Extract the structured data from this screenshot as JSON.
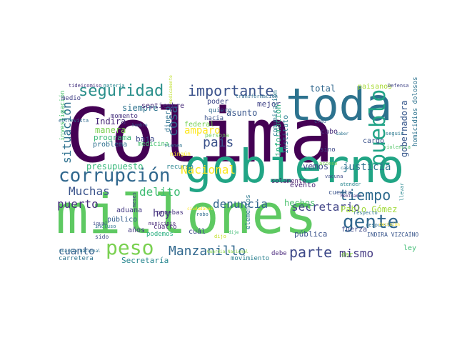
{
  "words": [
    {
      "text": "Colima",
      "color": "#440154"
    },
    {
      "text": "millones",
      "color": "#5ec962"
    },
    {
      "text": "gobierno",
      "color": "#21a585"
    },
    {
      "text": "toda",
      "color": "#2c728e"
    },
    {
      "text": "corrupción",
      "color": "#31688e"
    },
    {
      "text": "seguridad",
      "color": "#2a8f8b"
    },
    {
      "text": "importante",
      "color": "#3b528b"
    },
    {
      "text": "pueblo",
      "color": "#20a386"
    },
    {
      "text": "gente",
      "color": "#31688e"
    },
    {
      "text": "tiempo",
      "color": "#2f6b8e"
    },
    {
      "text": "Manzanillo",
      "color": "#31688e"
    },
    {
      "text": "peso",
      "color": "#7ad151"
    },
    {
      "text": "parte",
      "color": "#3e4989"
    },
    {
      "text": "mismo",
      "color": "#443a83"
    },
    {
      "text": "denuncia",
      "color": "#32648e"
    },
    {
      "text": "secretario",
      "color": "#414487"
    },
    {
      "text": "Muchas",
      "color": "#3a538b"
    },
    {
      "text": "delito",
      "color": "#3fbc73"
    },
    {
      "text": "puerto",
      "color": "#46327e"
    },
    {
      "text": "situación",
      "color": "#2d708e"
    },
    {
      "text": "cosa",
      "color": "#32648e"
    },
    {
      "text": "país",
      "color": "#3b528b"
    },
    {
      "text": "Nacional",
      "color": "#fde725"
    },
    {
      "text": "hoy",
      "color": "#46337f"
    },
    {
      "text": "cuanto",
      "color": "#355f8d"
    },
    {
      "text": "justicia",
      "color": "#2c738e"
    },
    {
      "text": "vemos",
      "color": "#3e4a89"
    },
    {
      "text": "gobernadora",
      "color": "#38588c"
    },
    {
      "text": "presupuesto",
      "color": "#35b779"
    },
    {
      "text": "siempre",
      "color": "#2c728e"
    },
    {
      "text": "manera",
      "color": "#7ad151"
    },
    {
      "text": "Indira",
      "color": "#482878"
    },
    {
      "text": "amparo",
      "color": "#fde725"
    },
    {
      "text": "total",
      "color": "#31688e"
    },
    {
      "text": "asunto",
      "color": "#39568c"
    },
    {
      "text": "mejor",
      "color": "#414487"
    },
    {
      "text": "hechos",
      "color": "#4ac16d"
    },
    {
      "text": "información",
      "color": "#29af7f"
    },
    {
      "text": "comunicación",
      "color": "#2a788e"
    },
    {
      "text": "septiembre",
      "color": "#472c7a"
    },
    {
      "text": "programa",
      "color": "#3aba76"
    },
    {
      "text": "dinero",
      "color": "#2d708e"
    },
    {
      "text": "baja",
      "color": "#3e4989"
    },
    {
      "text": "federal",
      "color": "#75d054"
    },
    {
      "text": "aduana",
      "color": "#443983"
    },
    {
      "text": "Pablo Gómez",
      "color": "#a0da39"
    },
    {
      "text": "Secretaría",
      "color": "#25858e"
    },
    {
      "text": "carretera",
      "color": "#2c728e"
    },
    {
      "text": "movimiento",
      "color": "#277f8e"
    },
    {
      "text": "pública",
      "color": "#3b528b"
    },
    {
      "text": "público",
      "color": "#355f8d"
    },
    {
      "text": "años",
      "color": "#443a83"
    },
    {
      "text": "podemos",
      "color": "#29af7f"
    },
    {
      "text": "cuatro",
      "color": "#482677"
    },
    {
      "text": "pruebas",
      "color": "#46337f"
    },
    {
      "text": "cuál",
      "color": "#3e4989"
    },
    {
      "text": "debe",
      "color": "#4c2a7d"
    },
    {
      "text": "ley",
      "color": "#3fbc73"
    },
    {
      "text": "dar",
      "color": "#8bd646"
    },
    {
      "text": "fuerza",
      "color": "#3e4989"
    },
    {
      "text": "elementos",
      "color": "#2a788e"
    },
    {
      "text": "evento",
      "color": "#482575"
    },
    {
      "text": "solamente",
      "color": "#481467"
    },
    {
      "text": "Instituto",
      "color": "#287d8e"
    },
    {
      "text": "cabo",
      "color": "#472d7b"
    },
    {
      "text": "cargo",
      "color": "#3b528b"
    },
    {
      "text": "homicidios dolosos",
      "color": "#2c728e"
    },
    {
      "text": "paisanos",
      "color": "#a8db34"
    },
    {
      "text": "poder",
      "color": "#3e4989"
    },
    {
      "text": "quiero",
      "color": "#31688e"
    },
    {
      "text": "hacia",
      "color": "#3b528b"
    },
    {
      "text": "momento",
      "color": "#46327e"
    },
    {
      "text": "investigación",
      "color": "#4ac16d"
    },
    {
      "text": "medio",
      "color": "#424086"
    },
    {
      "text": "problema",
      "color": "#2d708e"
    },
    {
      "text": "medicina",
      "color": "#46c06f"
    },
    {
      "text": "ningún",
      "color": "#fde725"
    },
    {
      "text": "recurso",
      "color": "#26828e"
    },
    {
      "text": "persona",
      "color": "#6ccd5a"
    },
    {
      "text": "transformación",
      "color": "#2f6b8e"
    },
    {
      "text": "sino",
      "color": "#3e4989"
    },
    {
      "text": "creo",
      "color": "#35608d"
    },
    {
      "text": "Defensa",
      "color": "#414487"
    },
    {
      "text": "cuenta",
      "color": "#3a538b"
    },
    {
      "text": "seguir",
      "color": "#2a788e"
    },
    {
      "text": "violencia",
      "color": "#54c568"
    },
    {
      "text": "atender",
      "color": "#25858e"
    },
    {
      "text": "respuesta",
      "color": "#2d708e"
    },
    {
      "text": "INDIRA VIZCAÍNO",
      "color": "#39568c"
    },
    {
      "text": "tideicomiso",
      "color": "#46337f"
    },
    {
      "text": "materia",
      "color": "#25858e"
    },
    {
      "text": "entrevista",
      "color": "#2f6b8e"
    },
    {
      "text": "igual",
      "color": "#3e4989"
    },
    {
      "text": "incluso",
      "color": "#2c728e"
    },
    {
      "text": "sido",
      "color": "#3e4989"
    },
    {
      "text": "municipio",
      "color": "#482878"
    },
    {
      "text": "robo",
      "color": "#2f6b8e"
    },
    {
      "text": "dijo",
      "color": "#c2df23"
    },
    {
      "text": "Guardia Nacional",
      "color": "#2c728e"
    },
    {
      "text": "Guardia Nacional",
      "color": "#8bd646"
    },
    {
      "text": "dije",
      "color": "#3fbc73"
    },
    {
      "text": "meses",
      "color": "#433e85"
    },
    {
      "text": "saber",
      "color": "#2c728e"
    },
    {
      "text": "respecto",
      "color": "#2c728e"
    },
    {
      "text": "Mexicano",
      "color": "#46327e"
    },
    {
      "text": "llevar",
      "color": "#25858e"
    },
    {
      "text": "ciudadanos",
      "color": "#fde725"
    },
    {
      "text": "hombre",
      "color": "#355f8d"
    },
    {
      "text": "medicamento",
      "color": "#bddf26"
    },
    {
      "text": "tienen",
      "color": "#2c728e"
    },
    {
      "text": "vacuna",
      "color": "#3e4989"
    },
    {
      "text": "acceso",
      "color": "#7ad151"
    },
    {
      "text": "caso",
      "color": "#2c728e"
    },
    {
      "text": "decisión",
      "color": "#fde725"
    }
  ]
}
